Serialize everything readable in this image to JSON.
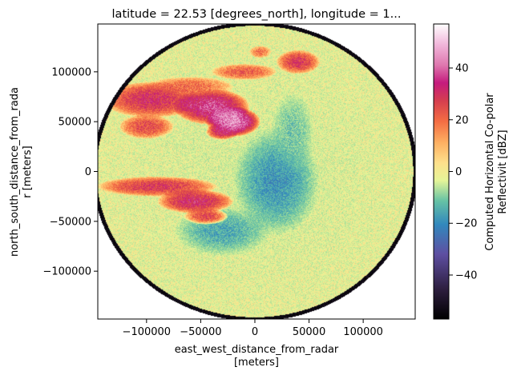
{
  "chart_data": {
    "type": "heatmap",
    "title": "latitude = 22.53 [degrees_north], longitude = 1...",
    "xlabel_line1": "east_west_distance_from_radar",
    "xlabel_line2": "[meters]",
    "ylabel_line1": "north_south_distance_from_rada",
    "ylabel_line2": "r [meters]",
    "colorbar_label_line1": "Computed Horizontal Co-polar",
    "colorbar_label_line2": "Reflectivit [dBZ]",
    "colormap": "Spectral_r",
    "xlim": [
      -145000,
      148000
    ],
    "ylim": [
      -148000,
      148000
    ],
    "xticks": [
      -100000,
      -50000,
      0,
      50000,
      100000
    ],
    "xtick_labels": [
      "−100000",
      "−50000",
      "0",
      "50000",
      "100000"
    ],
    "yticks": [
      100000,
      50000,
      0,
      -50000,
      -100000
    ],
    "ytick_labels": [
      "100000",
      "50000",
      "0",
      "−50000",
      "−100000"
    ],
    "colorbar_range": [
      -57,
      57
    ],
    "colorbar_ticks": [
      40,
      20,
      0,
      -20,
      -40
    ],
    "colorbar_tick_labels": [
      "40",
      "20",
      "0",
      "−20",
      "−40"
    ],
    "radar_range_m": 150000,
    "features": [
      {
        "cx": -95000,
        "cy": 72000,
        "rx": 45000,
        "ry": 18000,
        "dbz": 30
      },
      {
        "cx": -40000,
        "cy": 65000,
        "rx": 35000,
        "ry": 18000,
        "dbz": 38
      },
      {
        "cx": -20000,
        "cy": 50000,
        "rx": 25000,
        "ry": 15000,
        "dbz": 45
      },
      {
        "cx": -100000,
        "cy": 45000,
        "rx": 25000,
        "ry": 12000,
        "dbz": 25
      },
      {
        "cx": -60000,
        "cy": 85000,
        "rx": 40000,
        "ry": 10000,
        "dbz": 20
      },
      {
        "cx": -10000,
        "cy": 100000,
        "rx": 30000,
        "ry": 8000,
        "dbz": 22
      },
      {
        "cx": 40000,
        "cy": 110000,
        "rx": 20000,
        "ry": 12000,
        "dbz": 28
      },
      {
        "cx": -30000,
        "cy": 40000,
        "rx": 15000,
        "ry": 8000,
        "dbz": 32
      },
      {
        "cx": -90000,
        "cy": -15000,
        "rx": 55000,
        "ry": 10000,
        "dbz": 28
      },
      {
        "cx": -55000,
        "cy": -30000,
        "rx": 35000,
        "ry": 12000,
        "dbz": 32
      },
      {
        "cx": -45000,
        "cy": -45000,
        "rx": 20000,
        "ry": 8000,
        "dbz": 26
      },
      {
        "cx": 5000,
        "cy": 120000,
        "rx": 10000,
        "ry": 6000,
        "dbz": 18
      }
    ],
    "clear_air_patches": [
      {
        "cx": 20000,
        "cy": -10000,
        "rx": 40000,
        "ry": 55000,
        "dbz": -18
      },
      {
        "cx": -30000,
        "cy": -60000,
        "rx": 45000,
        "ry": 25000,
        "dbz": -15
      },
      {
        "cx": 35000,
        "cy": 40000,
        "rx": 20000,
        "ry": 40000,
        "dbz": -10
      }
    ]
  }
}
